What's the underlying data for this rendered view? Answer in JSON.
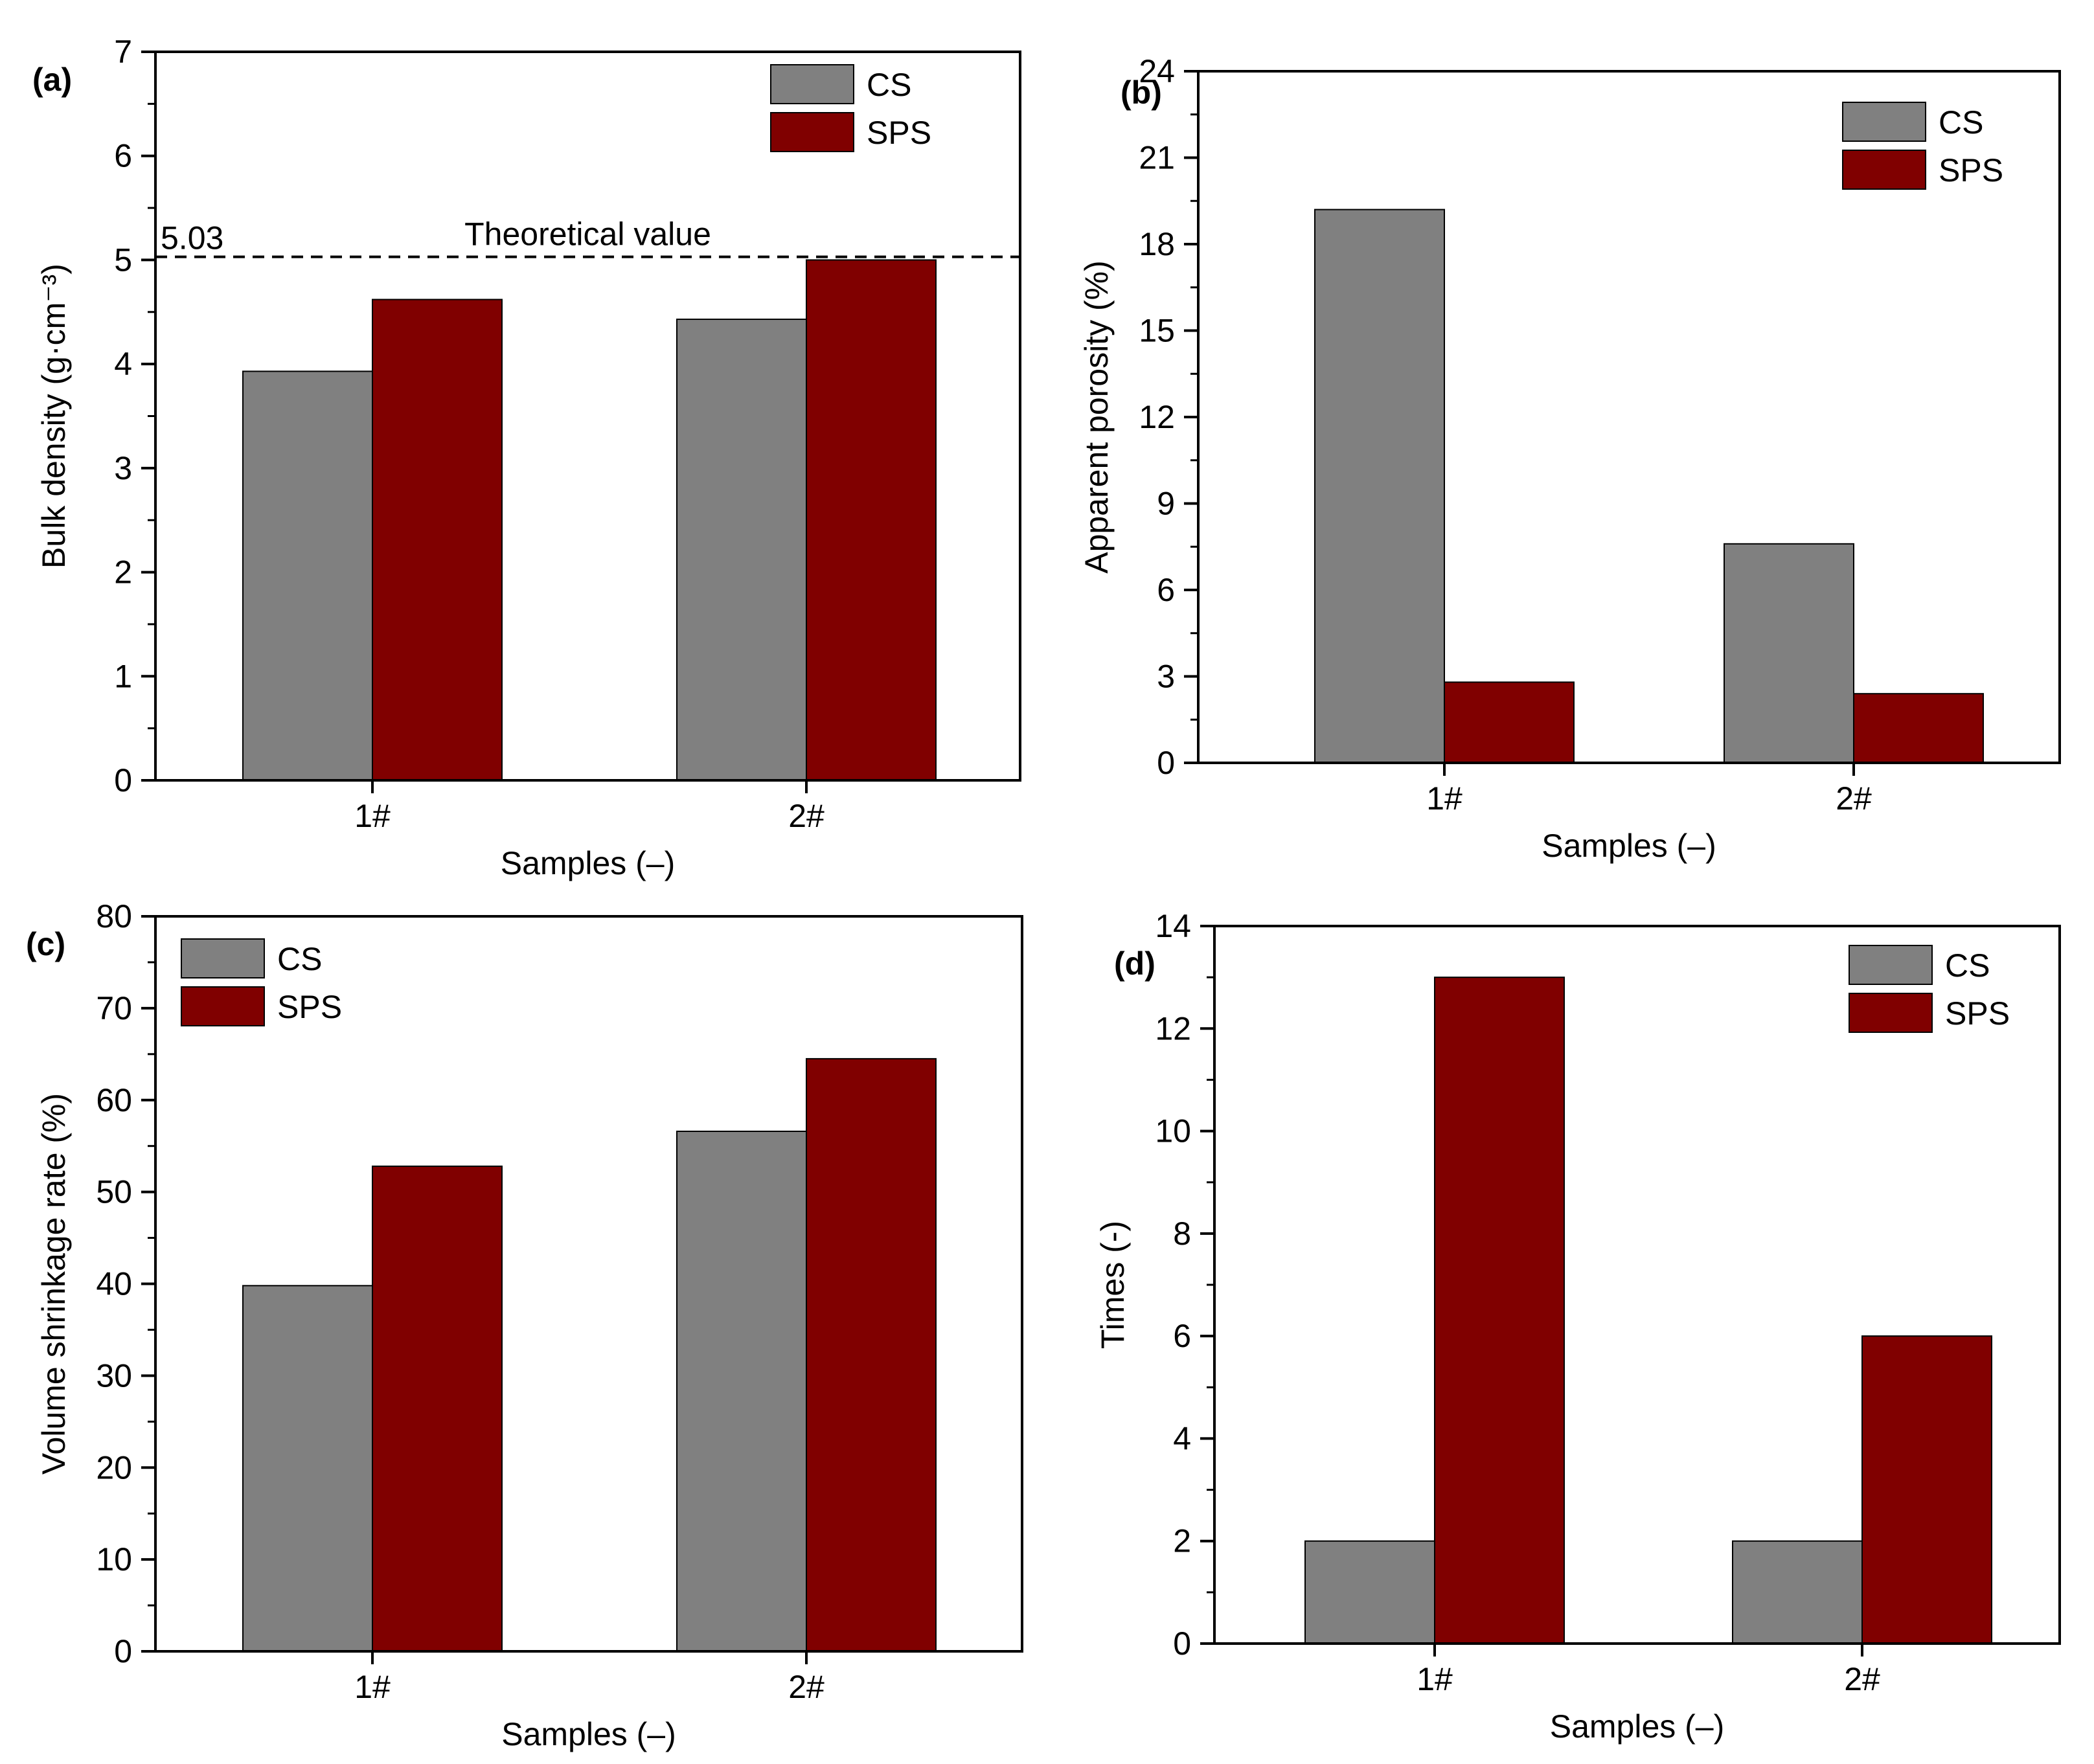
{
  "colors": {
    "cs": "#808080",
    "sps": "#800000",
    "axis": "#000000",
    "background": "#ffffff"
  },
  "chart_data": [
    {
      "panel": "(a)",
      "type": "bar",
      "categories": [
        "1#",
        "2#"
      ],
      "series": [
        {
          "name": "CS",
          "values": [
            3.93,
            4.43
          ]
        },
        {
          "name": "SPS",
          "values": [
            4.62,
            5.0
          ]
        }
      ],
      "xlabel": "Samples (–)",
      "ylabel": "Bulk density (g·cm⁻³)",
      "ylim": [
        0,
        7
      ],
      "yticks": [
        0,
        1,
        2,
        3,
        4,
        5,
        6,
        7
      ],
      "legend": "top-right",
      "reference_line": {
        "value": 5.03,
        "value_label": "5.03",
        "label": "Theoretical value"
      }
    },
    {
      "panel": "(b)",
      "type": "bar",
      "categories": [
        "1#",
        "2#"
      ],
      "series": [
        {
          "name": "CS",
          "values": [
            19.2,
            7.6
          ]
        },
        {
          "name": "SPS",
          "values": [
            2.8,
            2.4
          ]
        }
      ],
      "xlabel": "Samples (–)",
      "ylabel": "Apparent porosity (%)",
      "ylim": [
        0,
        24
      ],
      "yticks": [
        0,
        3,
        6,
        9,
        12,
        15,
        18,
        21,
        24
      ],
      "legend": "top-right"
    },
    {
      "panel": "(c)",
      "type": "bar",
      "categories": [
        "1#",
        "2#"
      ],
      "series": [
        {
          "name": "CS",
          "values": [
            39.8,
            56.6
          ]
        },
        {
          "name": "SPS",
          "values": [
            52.8,
            64.5
          ]
        }
      ],
      "xlabel": "Samples (–)",
      "ylabel": "Volume shrinkage rate (%)",
      "ylim": [
        0,
        80
      ],
      "yticks": [
        0,
        10,
        20,
        30,
        40,
        50,
        60,
        70,
        80
      ],
      "legend": "top-left"
    },
    {
      "panel": "(d)",
      "type": "bar",
      "categories": [
        "1#",
        "2#"
      ],
      "series": [
        {
          "name": "CS",
          "values": [
            2,
            2
          ]
        },
        {
          "name": "SPS",
          "values": [
            13,
            6
          ]
        }
      ],
      "xlabel": "Samples (–)",
      "ylabel": "Times (-)",
      "ylim": [
        0,
        14
      ],
      "yticks": [
        0,
        2,
        4,
        6,
        8,
        10,
        12,
        14
      ],
      "legend": "top-right"
    }
  ]
}
